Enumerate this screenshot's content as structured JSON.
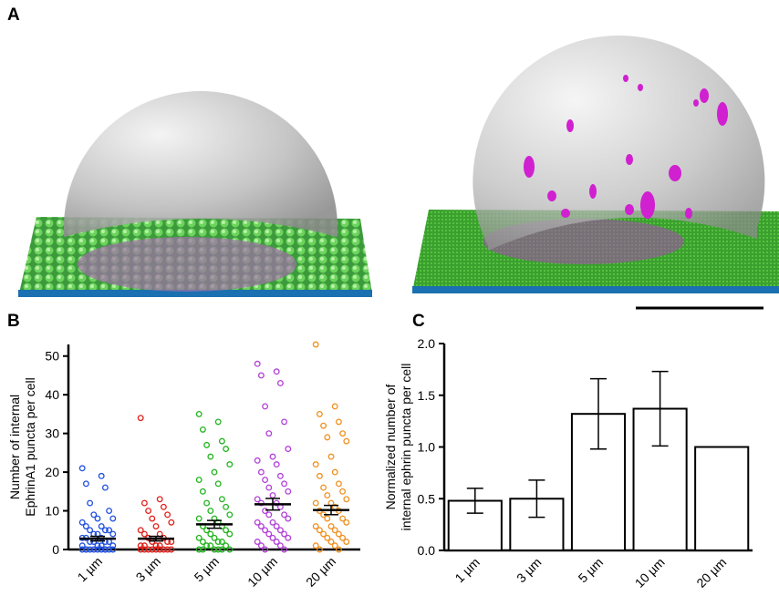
{
  "panel_labels": [
    "A",
    "B",
    "C"
  ],
  "chart_data": [
    {
      "type": "strip",
      "ylabel": [
        "Number of internal",
        "EphrinA1 puncta per cell"
      ],
      "categories": [
        "1 µm",
        "3 µm",
        "5 µm",
        "10 µm",
        "20 µm"
      ],
      "colors": [
        "#1f4fe0",
        "#e0201a",
        "#22b41e",
        "#b240d8",
        "#f09020"
      ],
      "points": [
        [
          21,
          19,
          17,
          16,
          12,
          10,
          9,
          8,
          8,
          7,
          6,
          6,
          5,
          5,
          5,
          4,
          4,
          4,
          3,
          3,
          3,
          2,
          2,
          2,
          2,
          1,
          1,
          1,
          1,
          0,
          0,
          0,
          0,
          0,
          0,
          0,
          0,
          0,
          0,
          0
        ],
        [
          34,
          13,
          12,
          11,
          10,
          9,
          8,
          7,
          6,
          5,
          4,
          4,
          3,
          3,
          2,
          2,
          2,
          1,
          1,
          1,
          1,
          0,
          0,
          0,
          0,
          0,
          0,
          0,
          0,
          0
        ],
        [
          35,
          33,
          31,
          28,
          27,
          26,
          24,
          22,
          20,
          18,
          17,
          15,
          13,
          12,
          11,
          10,
          9,
          8,
          8,
          7,
          6,
          6,
          5,
          5,
          4,
          4,
          3,
          3,
          2,
          2,
          2,
          1,
          1,
          1,
          0,
          0,
          0,
          0,
          0,
          0
        ],
        [
          48,
          46,
          45,
          43,
          37,
          33,
          30,
          26,
          24,
          23,
          22,
          20,
          19,
          18,
          17,
          16,
          15,
          14,
          13,
          12,
          12,
          11,
          10,
          9,
          9,
          8,
          7,
          7,
          6,
          6,
          5,
          5,
          4,
          4,
          3,
          3,
          2,
          2,
          1,
          1,
          0,
          0
        ],
        [
          53,
          37,
          35,
          33,
          32,
          30,
          29,
          28,
          24,
          22,
          20,
          19,
          17,
          16,
          15,
          14,
          13,
          12,
          12,
          11,
          10,
          10,
          9,
          8,
          8,
          7,
          6,
          6,
          5,
          5,
          4,
          4,
          3,
          3,
          2,
          2,
          1,
          1,
          0,
          0
        ]
      ],
      "means": [
        2.8,
        2.8,
        6.5,
        11.7,
        10.2
      ],
      "errors": [
        0.6,
        0.6,
        1.0,
        1.5,
        1.2
      ],
      "ylim": [
        0,
        53
      ],
      "yticks": [
        0,
        10,
        20,
        30,
        40,
        50
      ]
    },
    {
      "type": "bar",
      "ylabel": [
        "Normalized number of",
        "internal ephrin puncta per cell"
      ],
      "categories": [
        "1 µm",
        "3 µm",
        "5 µm",
        "10 µm",
        "20 µm"
      ],
      "values": [
        0.48,
        0.5,
        1.32,
        1.37,
        1.0
      ],
      "errors": [
        0.12,
        0.18,
        0.34,
        0.36,
        null
      ],
      "color": "#ffffff",
      "ylim": [
        0,
        2.0
      ],
      "yticks": [
        {
          "value": 0,
          "label": "0.0"
        },
        0.5,
        {
          "value": 1,
          "label": "1.0"
        },
        1.5,
        {
          "value": 2,
          "label": "2.0"
        }
      ]
    }
  ]
}
